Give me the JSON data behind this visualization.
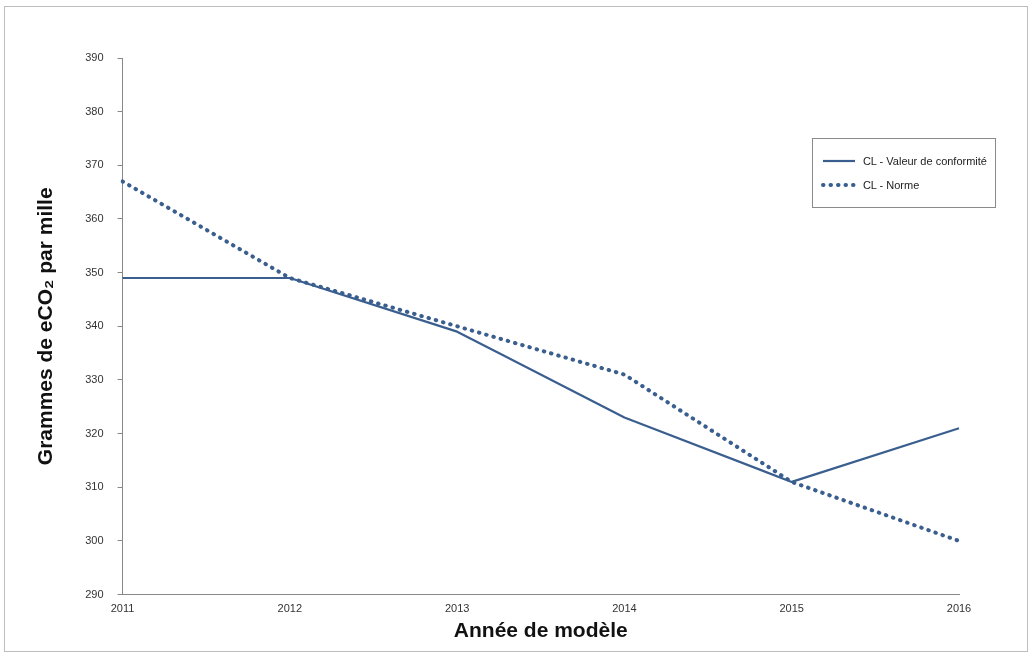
{
  "chart_data": {
    "type": "line",
    "xlabel": "Année de modèle",
    "ylabel": "Grammes de eCO₂ par mille",
    "categories": [
      "2011",
      "2012",
      "2013",
      "2014",
      "2015",
      "2016"
    ],
    "series": [
      {
        "name": "CL - Valeur de conformité",
        "color": "#3a5f8f",
        "line_style": "solid",
        "values": [
          349,
          349,
          339,
          323,
          311,
          321
        ]
      },
      {
        "name": "CL - Norme",
        "color": "#3a5f8f",
        "line_style": "dotted",
        "values": [
          367,
          349,
          340,
          331,
          311,
          300
        ]
      }
    ],
    "ylim": [
      290,
      390
    ],
    "yticks": [
      290,
      300,
      310,
      320,
      330,
      340,
      350,
      360,
      370,
      380,
      390
    ],
    "grid": false,
    "legend": "top right",
    "marker": "none"
  }
}
